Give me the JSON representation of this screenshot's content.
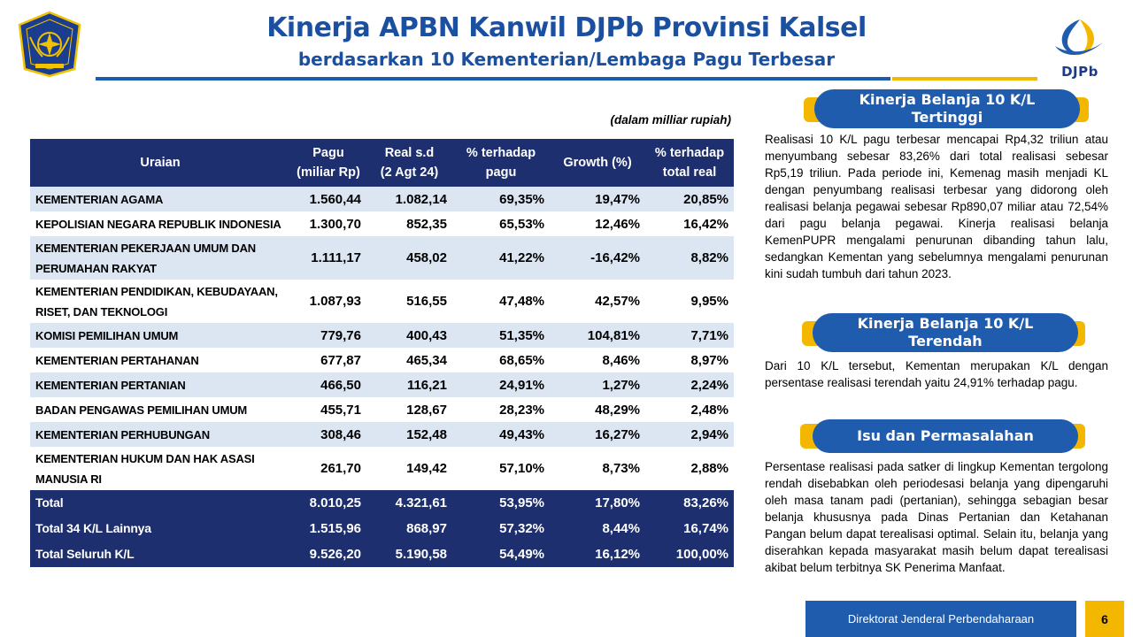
{
  "header": {
    "title": "Kinerja APBN Kanwil DJPb Provinsi Kalsel",
    "subtitle": "berdasarkan 10 Kementerian/Lembaga Pagu Terbesar",
    "logo_right_text": "DJPb"
  },
  "table": {
    "unit_note": "(dalam milliar rupiah)",
    "headers": {
      "uraian": "Uraian",
      "pagu_1": "Pagu",
      "pagu_2": "(miliar Rp)",
      "real_1": "Real s.d",
      "real_2": "(2 Agt 24)",
      "pct_pagu_1": "% terhadap",
      "pct_pagu_2": "pagu",
      "growth": "Growth (%)",
      "pct_real_1": "% terhadap",
      "pct_real_2": "total real"
    },
    "rows": [
      {
        "name": "KEMENTERIAN AGAMA",
        "pagu": "1.560,44",
        "real": "1.082,14",
        "pct_pagu": "69,35%",
        "growth": "19,47%",
        "pct_real": "20,85%"
      },
      {
        "name": "KEPOLISIAN NEGARA REPUBLIK INDONESIA",
        "pagu": "1.300,70",
        "real": "852,35",
        "pct_pagu": "65,53%",
        "growth": "12,46%",
        "pct_real": "16,42%"
      },
      {
        "name_1": "KEMENTERIAN PEKERJAAN UMUM DAN",
        "name_2": "PERUMAHAN RAKYAT",
        "pagu": "1.111,17",
        "real": "458,02",
        "pct_pagu": "41,22%",
        "growth": "-16,42%",
        "pct_real": "8,82%"
      },
      {
        "name_1": "KEMENTERIAN PENDIDIKAN, KEBUDAYAAN,",
        "name_2": "RISET, DAN TEKNOLOGI",
        "pagu": "1.087,93",
        "real": "516,55",
        "pct_pagu": "47,48%",
        "growth": "42,57%",
        "pct_real": "9,95%"
      },
      {
        "name": "KOMISI PEMILIHAN UMUM",
        "pagu": "779,76",
        "real": "400,43",
        "pct_pagu": "51,35%",
        "growth": "104,81%",
        "pct_real": "7,71%"
      },
      {
        "name": "KEMENTERIAN PERTAHANAN",
        "pagu": "677,87",
        "real": "465,34",
        "pct_pagu": "68,65%",
        "growth": "8,46%",
        "pct_real": "8,97%"
      },
      {
        "name": "KEMENTERIAN PERTANIAN",
        "pagu": "466,50",
        "real": "116,21",
        "pct_pagu": "24,91%",
        "growth": "1,27%",
        "pct_real": "2,24%"
      },
      {
        "name": "BADAN PENGAWAS PEMILIHAN UMUM",
        "pagu": "455,71",
        "real": "128,67",
        "pct_pagu": "28,23%",
        "growth": "48,29%",
        "pct_real": "2,48%"
      },
      {
        "name": "KEMENTERIAN PERHUBUNGAN",
        "pagu": "308,46",
        "real": "152,48",
        "pct_pagu": "49,43%",
        "growth": "16,27%",
        "pct_real": "2,94%"
      },
      {
        "name_1": "KEMENTERIAN HUKUM DAN HAK ASASI",
        "name_2": "MANUSIA RI",
        "pagu": "261,70",
        "real": "149,42",
        "pct_pagu": "57,10%",
        "growth": "8,73%",
        "pct_real": "2,88%"
      }
    ],
    "totals": [
      {
        "name": "Total",
        "pagu": "8.010,25",
        "real": "4.321,61",
        "pct_pagu": "53,95%",
        "growth": "17,80%",
        "pct_real": "83,26%"
      },
      {
        "name": "Total 34 K/L Lainnya",
        "pagu": "1.515,96",
        "real": "868,97",
        "pct_pagu": "57,32%",
        "growth": "8,44%",
        "pct_real": "16,74%"
      },
      {
        "name": "Total Seluruh K/L",
        "pagu": "9.526,20",
        "real": "5.190,58",
        "pct_pagu": "54,49%",
        "growth": "16,12%",
        "pct_real": "100,00%"
      }
    ]
  },
  "panels": {
    "highest": {
      "title_1": "Kinerja Belanja 10 K/L",
      "title_2": "Tertinggi",
      "text": "Realisasi 10 K/L pagu terbesar mencapai Rp4,32 triliun atau menyumbang sebesar 83,26% dari total realisasi sebesar Rp5,19 triliun. Pada periode ini, Kemenag masih menjadi KL dengan penyumbang realisasi terbesar yang didorong oleh realisasi belanja pegawai sebesar Rp890,07 miliar atau 72,54% dari pagu belanja pegawai. Kinerja realisasi belanja KemenPUPR mengalami penurunan dibanding tahun lalu, sedangkan Kementan yang sebelumnya mengalami penurunan kini sudah tumbuh dari tahun 2023."
    },
    "lowest": {
      "title_1": "Kinerja Belanja 10 K/L",
      "title_2": "Terendah",
      "text": "Dari 10 K/L tersebut, Kementan merupakan K/L dengan persentase realisasi terendah yaitu 24,91% terhadap pagu."
    },
    "issues": {
      "title": "Isu dan Permasalahan",
      "text": "Persentase realisasi pada satker di lingkup Kementan tergolong rendah disebabkan oleh periodesasi belanja yang dipengaruhi oleh masa tanam padi (pertanian), sehingga sebagian besar belanja khususnya pada Dinas Pertanian dan Ketahanan Pangan belum dapat terealisasi optimal. Selain itu, belanja yang diserahkan kepada masyarakat masih belum dapat terealisasi akibat belum terbitnya SK Penerima Manfaat."
    }
  },
  "footer": {
    "org": "Direktorat Jenderal Perbendaharaan",
    "page": "6"
  },
  "colors": {
    "navy": "#1d2f6e",
    "blue": "#1f5cae",
    "gold": "#f4b700",
    "row_alt": "#dce6f3"
  }
}
